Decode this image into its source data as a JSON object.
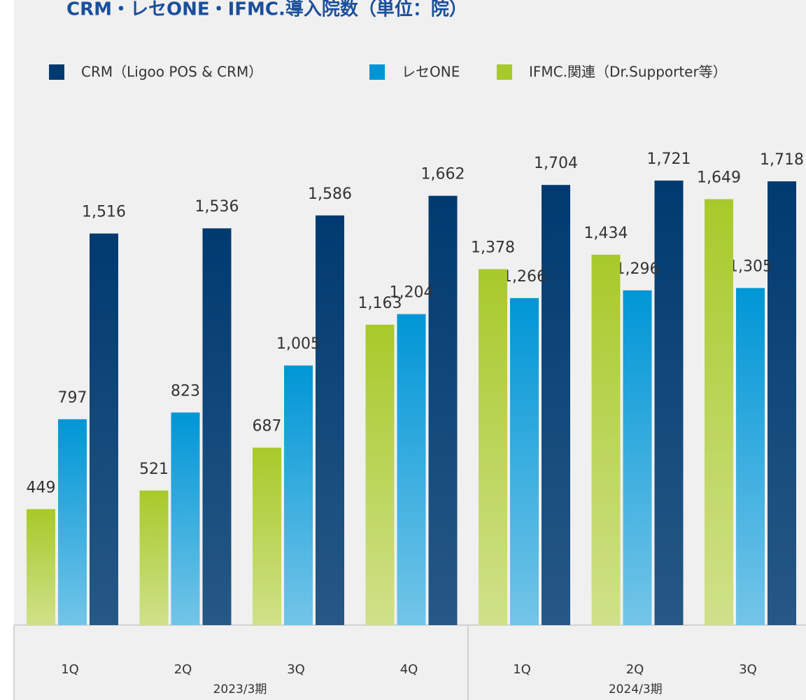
{
  "chart_data": {
    "type": "bar",
    "title": "CRM・レセONE・IFMC.導入院数（単位：院）",
    "categories": [
      "1Q",
      "2Q",
      "3Q",
      "4Q",
      "1Q",
      "2Q",
      "3Q"
    ],
    "category_groups": [
      "2023/3期",
      "2023/3期",
      "2023/3期",
      "2023/3期",
      "2024/3期",
      "2024/3期",
      "2024/3期"
    ],
    "series": [
      {
        "name": "CRM（Ligoo POS & CRM）",
        "color": "#003a70",
        "values": [
          1516,
          1536,
          1586,
          1662,
          1704,
          1721,
          1718
        ],
        "value_labels": [
          "1,516",
          "1,536",
          "1,586",
          "1,662",
          "1,704",
          "1,721",
          "1,718"
        ]
      },
      {
        "name": "レセONE",
        "color": "#0096d6",
        "values": [
          797,
          823,
          1005,
          1204,
          1266,
          1296,
          1305
        ],
        "value_labels": [
          "797",
          "823",
          "1,005",
          "1,204",
          "1,266",
          "1,296",
          "1,305"
        ]
      },
      {
        "name": "IFMC.関連（Dr.Supporter等）",
        "color": "#a8c92a",
        "values": [
          449,
          521,
          687,
          1163,
          1378,
          1434,
          1649
        ],
        "value_labels": [
          "449",
          "521",
          "687",
          "1,163",
          "1,378",
          "1,434",
          "1,649"
        ]
      }
    ],
    "ylim": [
      0,
      2000
    ]
  }
}
